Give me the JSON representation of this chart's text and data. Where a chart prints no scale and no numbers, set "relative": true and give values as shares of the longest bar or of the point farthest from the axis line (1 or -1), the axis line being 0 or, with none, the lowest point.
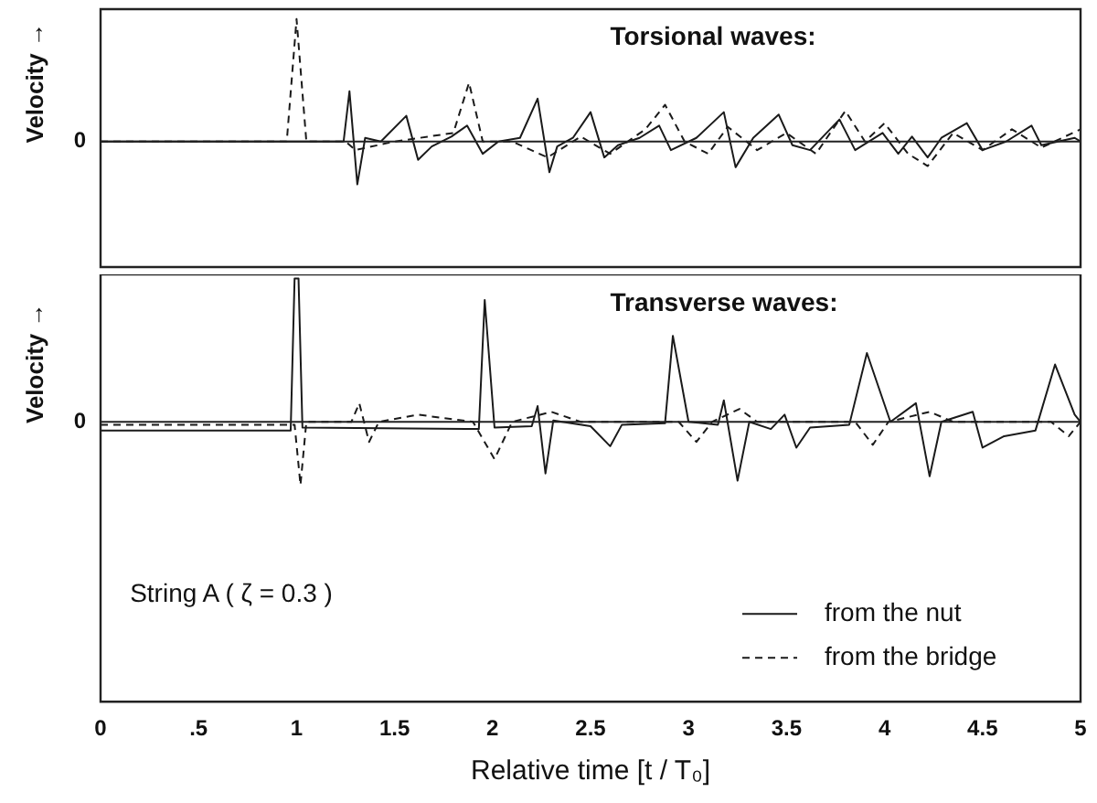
{
  "chart_data": [
    {
      "type": "line",
      "relative": true,
      "ylabel": "Velocity →",
      "annotations": [
        "Torsional waves:"
      ],
      "xlim": [
        0,
        5
      ],
      "tick_labels": false,
      "grid": false,
      "legend": false,
      "marker": "none",
      "ref_lines": [
        {
          "axis": "y",
          "value": 0,
          "label": "0"
        }
      ],
      "series": [
        {
          "color": "#1a1a1a",
          "line_style": "solid",
          "x": [
            0,
            1.24,
            1.27,
            1.31,
            1.35,
            1.43,
            1.56,
            1.62,
            1.69,
            1.79,
            1.87,
            1.95,
            2.03,
            2.14,
            2.23,
            2.29,
            2.33,
            2.41,
            2.5,
            2.57,
            2.64,
            2.75,
            2.85,
            2.91,
            3.04,
            3.18,
            3.24,
            3.33,
            3.46,
            3.53,
            3.62,
            3.77,
            3.85,
            3.99,
            4.07,
            4.14,
            4.22,
            4.29,
            4.42,
            4.5,
            4.62,
            4.75,
            4.8,
            4.97,
            5
          ],
          "values": [
            0,
            0,
            0.41,
            -0.35,
            0.03,
            0,
            0.21,
            -0.15,
            -0.04,
            0.04,
            0.13,
            -0.1,
            0,
            0.03,
            0.35,
            -0.25,
            -0.04,
            0.03,
            0.24,
            -0.13,
            -0.03,
            0.03,
            0.13,
            -0.07,
            0.03,
            0.24,
            -0.21,
            0.03,
            0.22,
            -0.03,
            -0.07,
            0.18,
            -0.07,
            0.07,
            -0.1,
            0.04,
            -0.13,
            0.03,
            0.15,
            -0.07,
            0,
            0.13,
            -0.03,
            0.03,
            0
          ]
        },
        {
          "color": "#1a1a1a",
          "line_style": "dashed",
          "x": [
            0,
            0.95,
            1.0,
            1.05,
            1.25,
            1.3,
            1.5,
            1.8,
            1.88,
            1.95,
            2.1,
            2.28,
            2.45,
            2.6,
            2.78,
            2.88,
            2.98,
            3.1,
            3.2,
            3.35,
            3.5,
            3.65,
            3.8,
            3.9,
            4.0,
            4.12,
            4.22,
            4.35,
            4.5,
            4.65,
            4.8,
            5
          ],
          "values": [
            0,
            0,
            1,
            0,
            0,
            -0.07,
            0,
            0.07,
            0.48,
            0,
            0,
            -0.13,
            0.04,
            -0.1,
            0.1,
            0.3,
            0,
            -0.1,
            0.12,
            -0.07,
            0.07,
            -0.1,
            0.25,
            0,
            0.15,
            -0.1,
            -0.2,
            0.07,
            -0.07,
            0.1,
            -0.05,
            0.1
          ]
        }
      ]
    },
    {
      "type": "line",
      "relative": true,
      "ylabel": "Velocity →",
      "xlabel": "Relative time [t / T₀]",
      "annotations": [
        "Transverse waves:",
        "String A ( ζ = 0.3 )"
      ],
      "xlim": [
        0,
        5
      ],
      "xticks": [
        0,
        {
          "value": 0.5,
          "label": ".5"
        },
        1,
        1.5,
        2,
        2.5,
        3,
        3.5,
        4,
        4.5,
        5
      ],
      "tick_labels": "x",
      "grid": false,
      "legend": "bottom right",
      "marker": "none",
      "ref_lines": [
        {
          "axis": "y",
          "value": 0,
          "label": "0"
        }
      ],
      "series": [
        {
          "name": "from the nut",
          "color": "#1a1a1a",
          "line_style": "solid",
          "x": [
            0,
            0.97,
            0.99,
            1.01,
            1.03,
            1.93,
            1.96,
            2.01,
            2.2,
            2.23,
            2.27,
            2.31,
            2.5,
            2.6,
            2.66,
            2.88,
            2.92,
            3.0,
            3.15,
            3.18,
            3.25,
            3.31,
            3.42,
            3.49,
            3.55,
            3.62,
            3.82,
            3.91,
            4.03,
            4.16,
            4.23,
            4.29,
            4.45,
            4.5,
            4.61,
            4.77,
            4.87,
            4.97,
            5
          ],
          "values": [
            -0.06,
            -0.06,
            1,
            1,
            -0.04,
            -0.05,
            0.85,
            -0.04,
            -0.03,
            0.11,
            -0.36,
            0.01,
            -0.03,
            -0.17,
            -0.02,
            -0.01,
            0.6,
            0,
            -0.02,
            0.15,
            -0.41,
            0,
            -0.05,
            0.05,
            -0.18,
            -0.04,
            -0.02,
            0.48,
            0,
            0.13,
            -0.38,
            0,
            0.07,
            -0.18,
            -0.1,
            -0.06,
            0.4,
            0.05,
            0
          ]
        },
        {
          "name": "from the bridge",
          "color": "#1a1a1a",
          "line_style": "dashed",
          "x": [
            0,
            0.99,
            1.02,
            1.05,
            1.28,
            1.32,
            1.37,
            1.42,
            1.62,
            1.9,
            2.01,
            2.1,
            2.3,
            2.45,
            2.95,
            3.04,
            3.12,
            3.26,
            3.35,
            3.85,
            3.94,
            4.02,
            4.23,
            4.35,
            4.85,
            4.94,
            5
          ],
          "values": [
            -0.02,
            -0.02,
            -0.44,
            0,
            0,
            0.13,
            -0.14,
            0,
            0.05,
            0,
            -0.26,
            0,
            0.07,
            0,
            0,
            -0.14,
            0,
            0.09,
            0,
            0,
            -0.16,
            0,
            0.07,
            0,
            0,
            -0.1,
            0
          ]
        }
      ]
    }
  ]
}
